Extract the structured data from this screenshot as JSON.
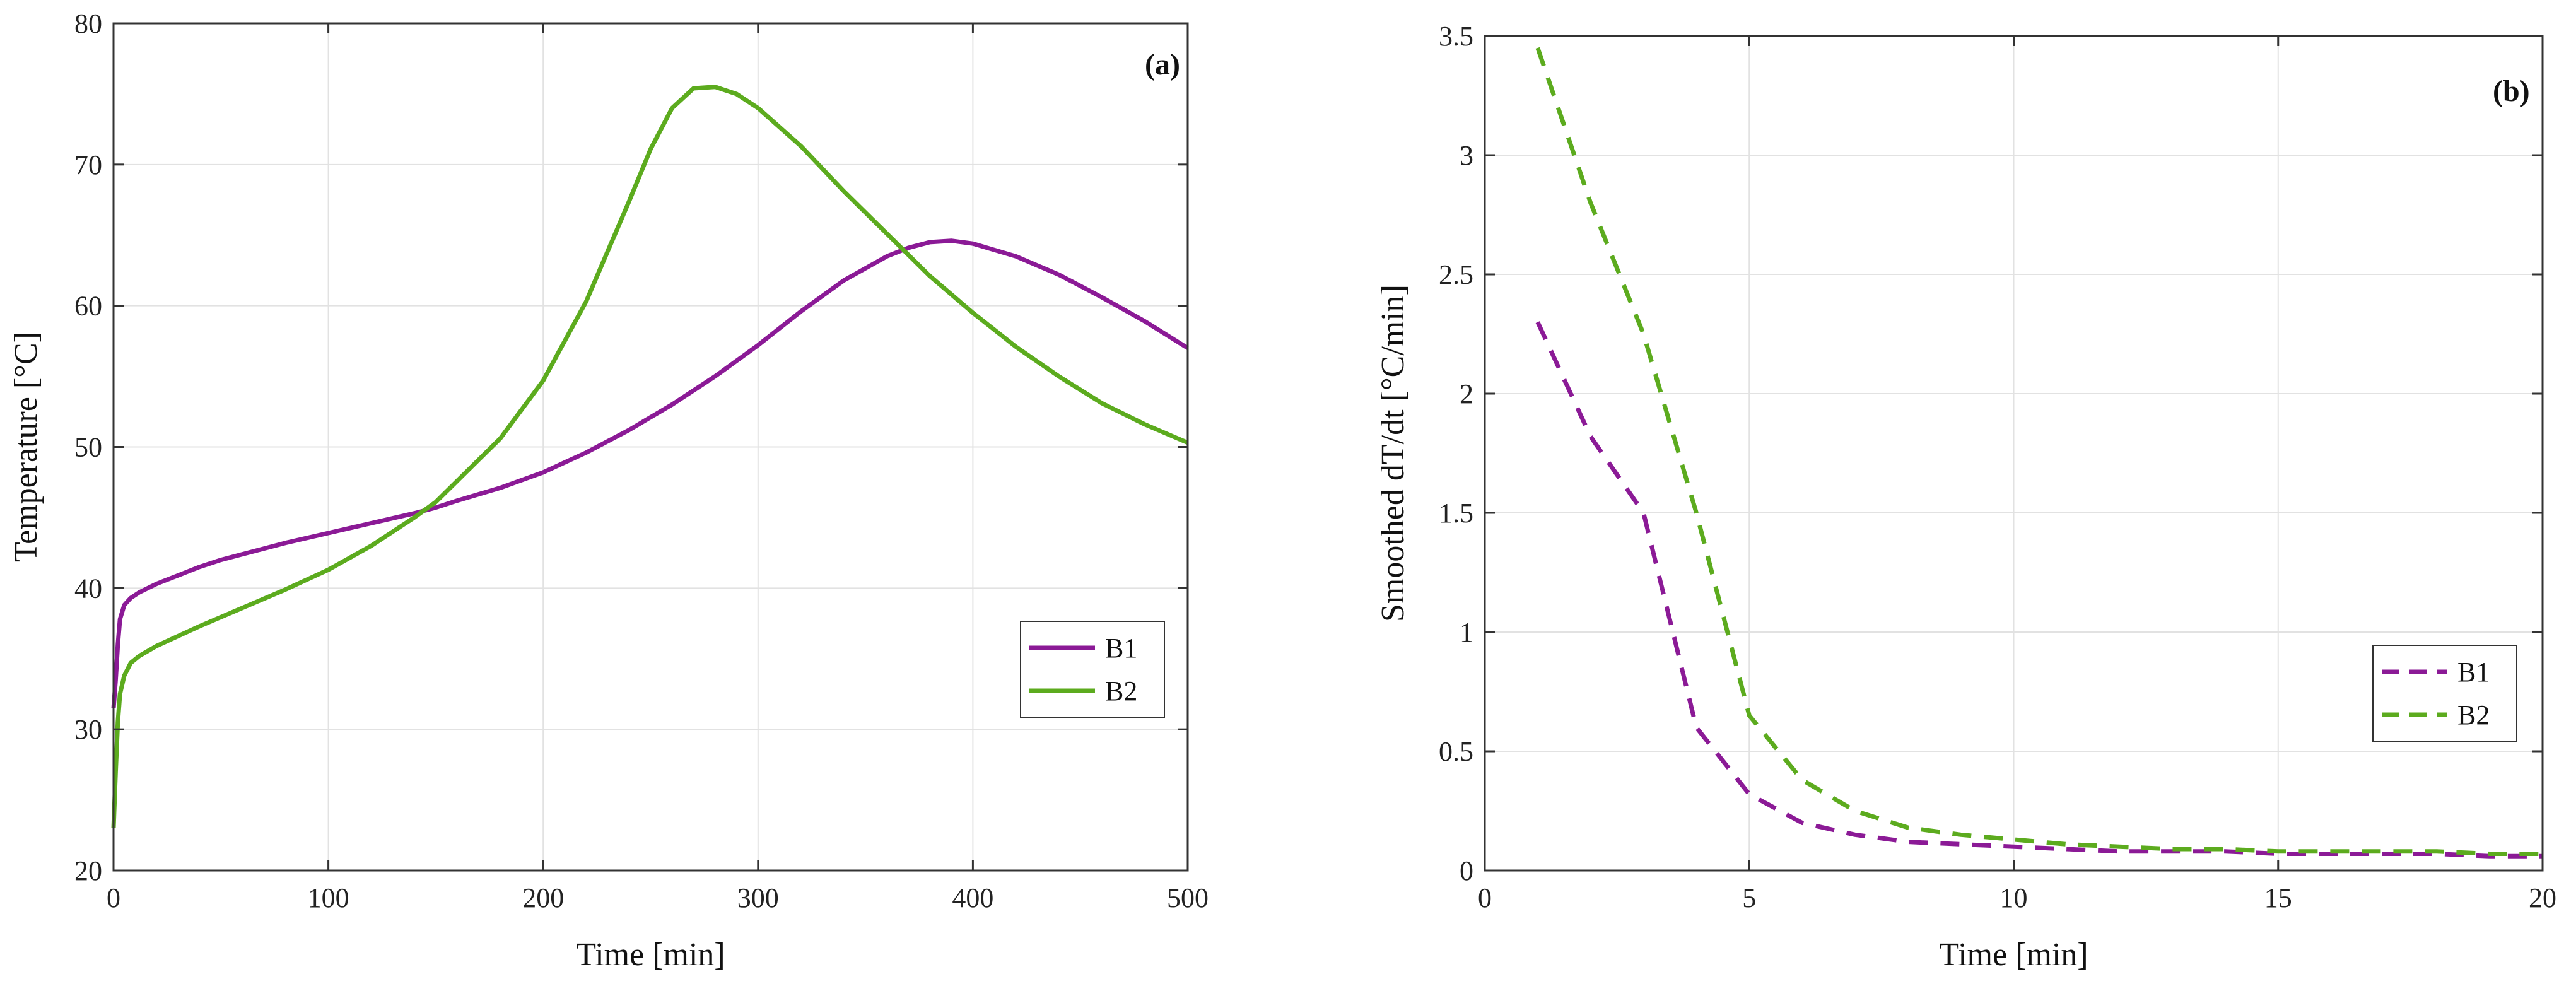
{
  "chart_data": [
    {
      "type": "line",
      "panel_label": "(a)",
      "xlabel": "Time [min]",
      "ylabel": "Temperature [°C]",
      "xlim": [
        0,
        500
      ],
      "ylim": [
        20,
        80
      ],
      "xticks": [
        0,
        100,
        200,
        300,
        400,
        500
      ],
      "yticks": [
        20,
        30,
        40,
        50,
        60,
        70,
        80
      ],
      "grid": true,
      "legend_position": "bottom-right",
      "series": [
        {
          "name": "B1",
          "color": "#8b1a96",
          "style": "solid",
          "x": [
            0,
            1,
            2,
            3,
            5,
            8,
            12,
            20,
            30,
            40,
            50,
            60,
            80,
            100,
            120,
            140,
            150,
            160,
            180,
            200,
            220,
            240,
            260,
            280,
            300,
            320,
            340,
            360,
            370,
            380,
            390,
            400,
            420,
            440,
            460,
            480,
            500
          ],
          "y": [
            31.5,
            33.5,
            36.0,
            37.8,
            38.8,
            39.3,
            39.7,
            40.3,
            40.9,
            41.5,
            42.0,
            42.4,
            43.2,
            43.9,
            44.6,
            45.3,
            45.7,
            46.2,
            47.1,
            48.2,
            49.6,
            51.2,
            53.0,
            55.0,
            57.2,
            59.6,
            61.8,
            63.5,
            64.1,
            64.5,
            64.6,
            64.4,
            63.5,
            62.2,
            60.6,
            58.9,
            57.0
          ]
        },
        {
          "name": "B2",
          "color": "#5cab1e",
          "style": "solid",
          "x": [
            0,
            1,
            2,
            3,
            5,
            8,
            12,
            20,
            30,
            40,
            60,
            80,
            100,
            120,
            140,
            150,
            160,
            180,
            200,
            220,
            240,
            250,
            260,
            270,
            280,
            290,
            300,
            320,
            340,
            360,
            380,
            400,
            420,
            440,
            460,
            480,
            500
          ],
          "y": [
            23.0,
            27.0,
            30.5,
            32.5,
            33.8,
            34.7,
            35.2,
            35.9,
            36.6,
            37.3,
            38.6,
            39.9,
            41.3,
            43.0,
            45.0,
            46.1,
            47.6,
            50.6,
            54.7,
            60.3,
            67.4,
            71.1,
            74.0,
            75.4,
            75.5,
            75.0,
            74.0,
            71.3,
            68.1,
            65.1,
            62.1,
            59.5,
            57.1,
            55.0,
            53.1,
            51.6,
            50.3
          ]
        }
      ]
    },
    {
      "type": "line",
      "panel_label": "(b)",
      "xlabel": "Time [min]",
      "ylabel": "Smoothed dT/dt [°C/min]",
      "xlim": [
        0,
        20
      ],
      "ylim": [
        0,
        3.5
      ],
      "xticks": [
        0,
        5,
        10,
        15,
        20
      ],
      "yticks": [
        0,
        0.5,
        1,
        1.5,
        2,
        2.5,
        3,
        3.5
      ],
      "grid": true,
      "legend_position": "bottom-right",
      "series": [
        {
          "name": "B1",
          "color": "#8b1a96",
          "style": "dashed",
          "x": [
            1,
            2,
            3,
            4,
            5,
            6,
            7,
            8,
            9,
            10,
            11,
            12,
            13,
            14,
            15,
            16,
            17,
            18,
            19,
            20
          ],
          "y": [
            2.3,
            1.82,
            1.5,
            0.6,
            0.32,
            0.2,
            0.15,
            0.12,
            0.11,
            0.1,
            0.09,
            0.08,
            0.08,
            0.08,
            0.07,
            0.07,
            0.07,
            0.07,
            0.06,
            0.06
          ]
        },
        {
          "name": "B2",
          "color": "#5cab1e",
          "style": "dashed",
          "x": [
            1,
            2,
            3,
            4,
            5,
            6,
            7,
            8,
            9,
            10,
            11,
            12,
            13,
            14,
            15,
            16,
            17,
            18,
            19,
            20
          ],
          "y": [
            3.45,
            2.8,
            2.25,
            1.5,
            0.65,
            0.38,
            0.25,
            0.18,
            0.15,
            0.13,
            0.11,
            0.1,
            0.09,
            0.09,
            0.08,
            0.08,
            0.08,
            0.08,
            0.07,
            0.07
          ]
        }
      ]
    }
  ]
}
